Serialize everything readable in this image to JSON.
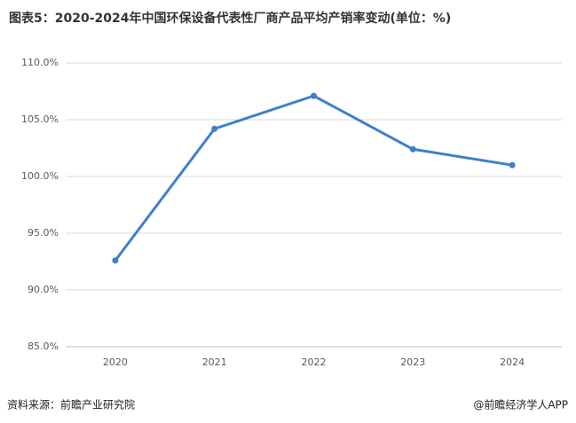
{
  "chart_data": {
    "type": "line",
    "title": "图表5：2020-2024年中国环保设备代表性厂商产品平均产销率变动(单位：%)",
    "categories": [
      "2020",
      "2021",
      "2022",
      "2023",
      "2024"
    ],
    "series": [
      {
        "name": "平均产销率",
        "color": "#3f7fcc",
        "values": [
          92.6,
          104.2,
          107.1,
          102.4,
          101.0
        ]
      }
    ],
    "ylim": [
      85,
      110
    ],
    "yticks": [
      {
        "value": 85,
        "label": "85.0%"
      },
      {
        "value": 90,
        "label": "90.0%"
      },
      {
        "value": 95,
        "label": "95.0%"
      },
      {
        "value": 100,
        "label": "100.0%"
      },
      {
        "value": 105,
        "label": "105.0%"
      },
      {
        "value": 110,
        "label": "110.0%"
      }
    ],
    "grid": true,
    "source": "资料来源：前瞻产业研究院",
    "credit": "@前瞻经济学人APP"
  }
}
